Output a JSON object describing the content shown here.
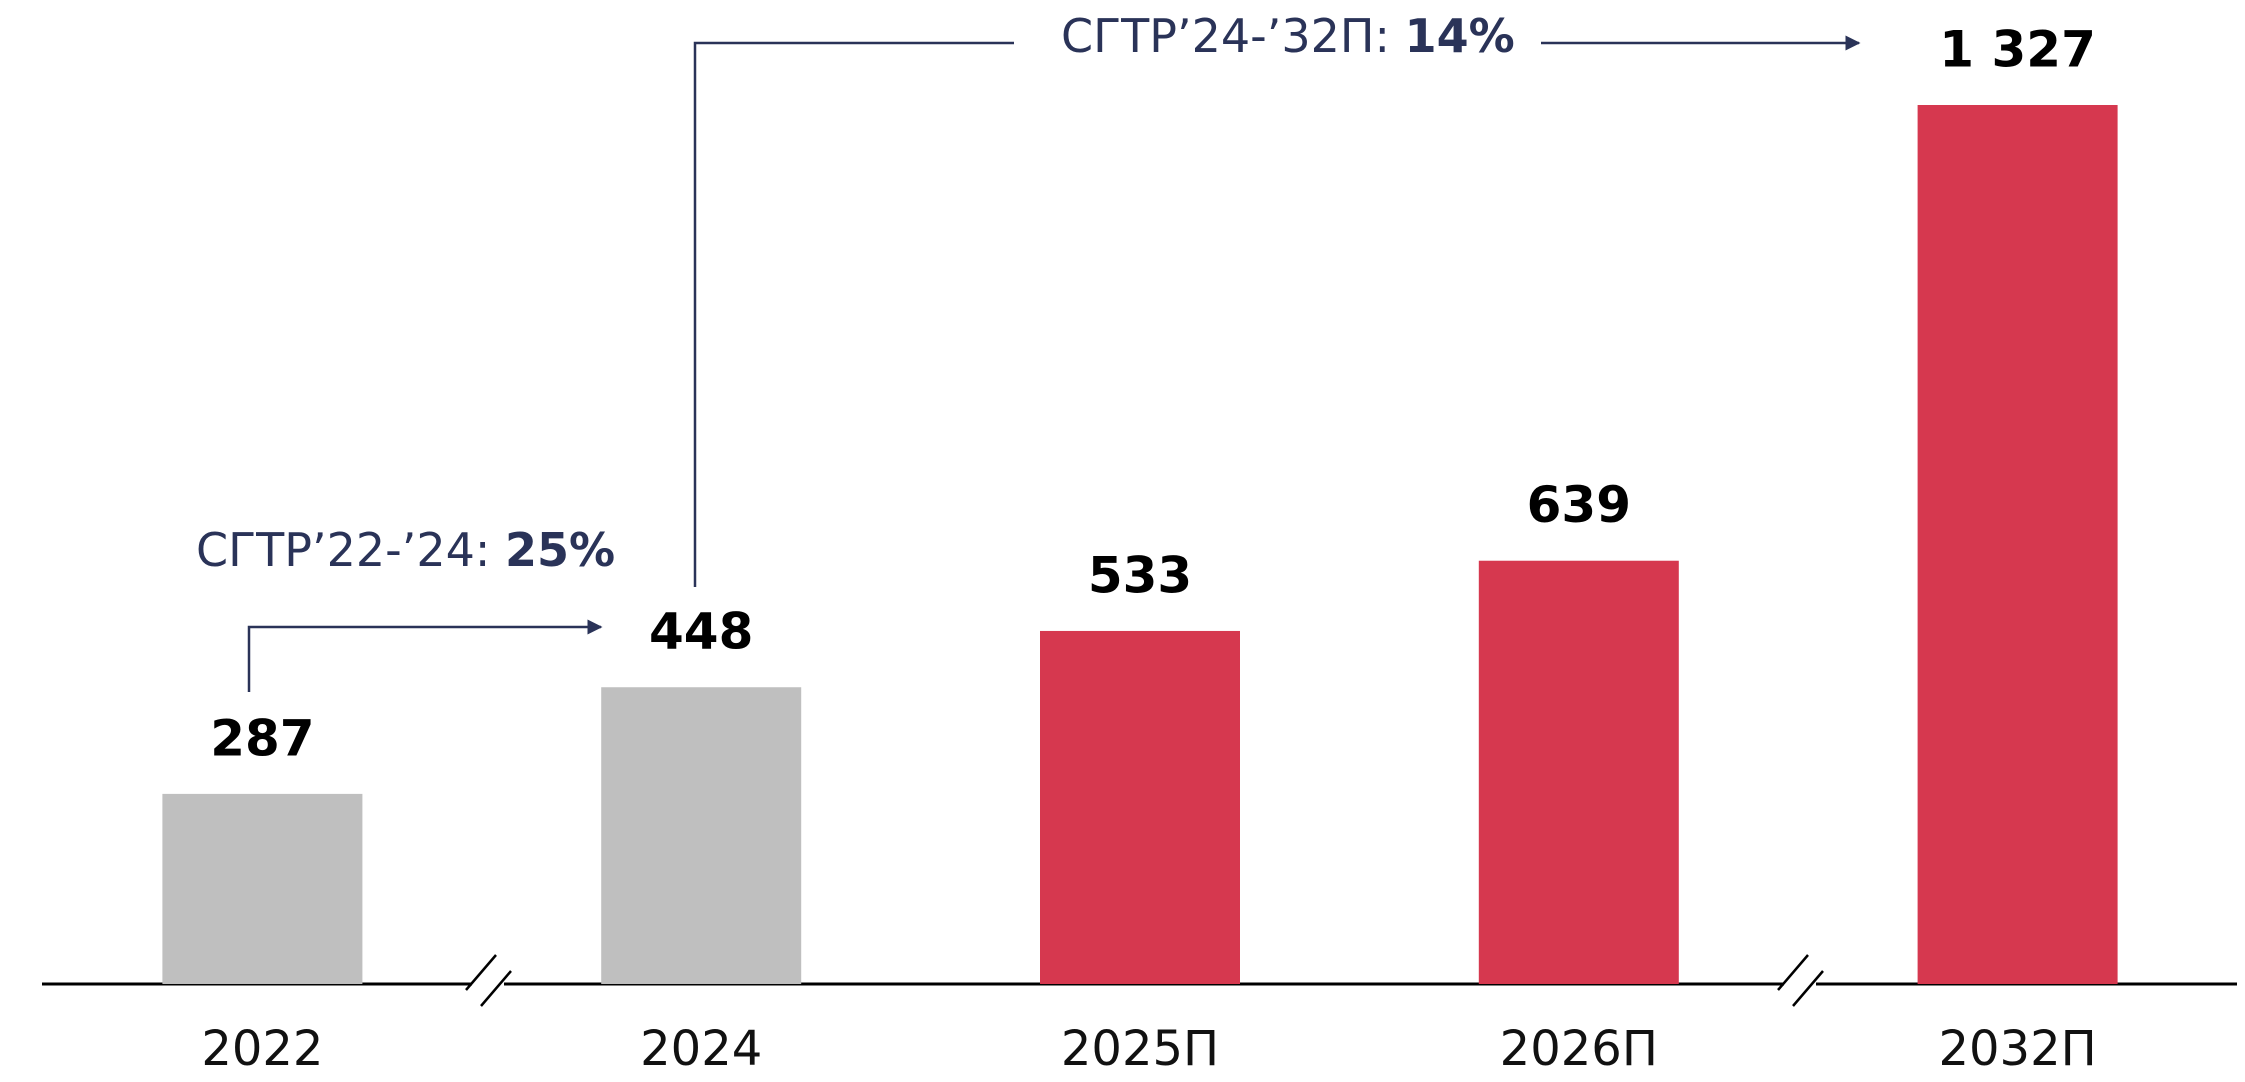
{
  "chart_data": {
    "type": "bar",
    "categories": [
      "2022",
      "2024",
      "2025П",
      "2026П",
      "2032П"
    ],
    "values": [
      287,
      448,
      533,
      639,
      1327
    ],
    "value_labels": [
      "287",
      "448",
      "533",
      "639",
      "1 327"
    ],
    "colors": [
      "#bfbfbf",
      "#bfbfbf",
      "#d6384f",
      "#d6384f",
      "#d6384f"
    ],
    "ylim": [
      0,
      1327
    ],
    "annotations": [
      {
        "text": "СГТР’22-’24: ",
        "value": "25%"
      },
      {
        "text": "СГТР’24-’32П: ",
        "value": "14%"
      }
    ]
  }
}
